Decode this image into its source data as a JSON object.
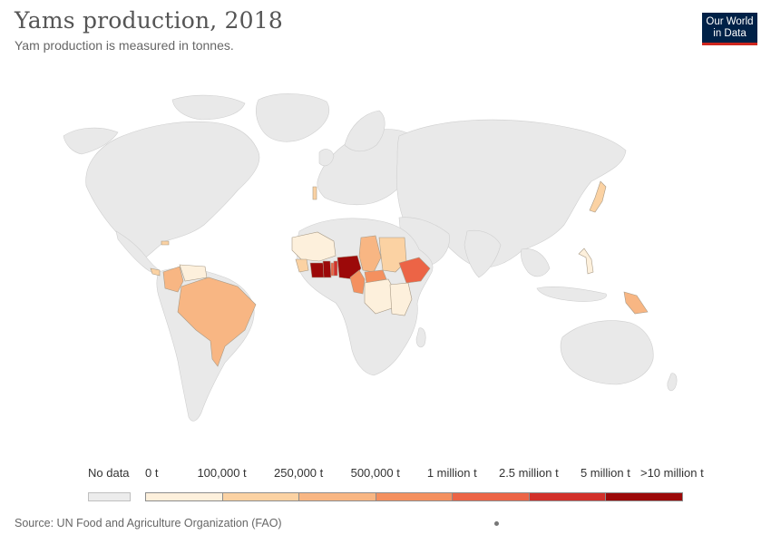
{
  "header": {
    "title": "Yams production, 2018",
    "subtitle": "Yam production is measured in tonnes."
  },
  "logo": {
    "line1": "Our World",
    "line2": "in Data"
  },
  "legend": {
    "no_data_label": "No data",
    "labels": [
      "0 t",
      "100,000 t",
      "250,000 t",
      "500,000 t",
      "1 million t",
      "2.5 million t",
      "5 million t",
      ">10 million t"
    ],
    "bin_colors": [
      "#fdf0dc",
      "#fbd2a3",
      "#f8b683",
      "#f4905f",
      "#ec6446",
      "#d2302a",
      "#9c0909"
    ],
    "no_data_color": "#ececec"
  },
  "footer": {
    "source": "Source: UN Food and Agriculture Organization (FAO)"
  },
  "map_data": {
    "unit": "tonnes",
    "year": 2018,
    "regions": [
      {
        "id": "nigeria",
        "bin": 6
      },
      {
        "id": "ivory-coast",
        "bin": 6
      },
      {
        "id": "ghana",
        "bin": 6
      },
      {
        "id": "benin",
        "bin": 5
      },
      {
        "id": "togo",
        "bin": 4
      },
      {
        "id": "cameroon",
        "bin": 3
      },
      {
        "id": "ethiopia",
        "bin": 4
      },
      {
        "id": "chad",
        "bin": 2
      },
      {
        "id": "sudan",
        "bin": 1
      },
      {
        "id": "car",
        "bin": 3
      },
      {
        "id": "mali",
        "bin": 0
      },
      {
        "id": "guinea",
        "bin": 1
      },
      {
        "id": "drc",
        "bin": 0
      },
      {
        "id": "kenya-region",
        "bin": 0
      },
      {
        "id": "brazil",
        "bin": 2
      },
      {
        "id": "colombia",
        "bin": 2
      },
      {
        "id": "venezuela",
        "bin": 0
      },
      {
        "id": "panama",
        "bin": 1
      },
      {
        "id": "jamaica",
        "bin": 1
      },
      {
        "id": "japan",
        "bin": 1
      },
      {
        "id": "philippines",
        "bin": 0
      },
      {
        "id": "papua-new-guinea",
        "bin": 2
      },
      {
        "id": "portugal",
        "bin": 1
      }
    ]
  }
}
